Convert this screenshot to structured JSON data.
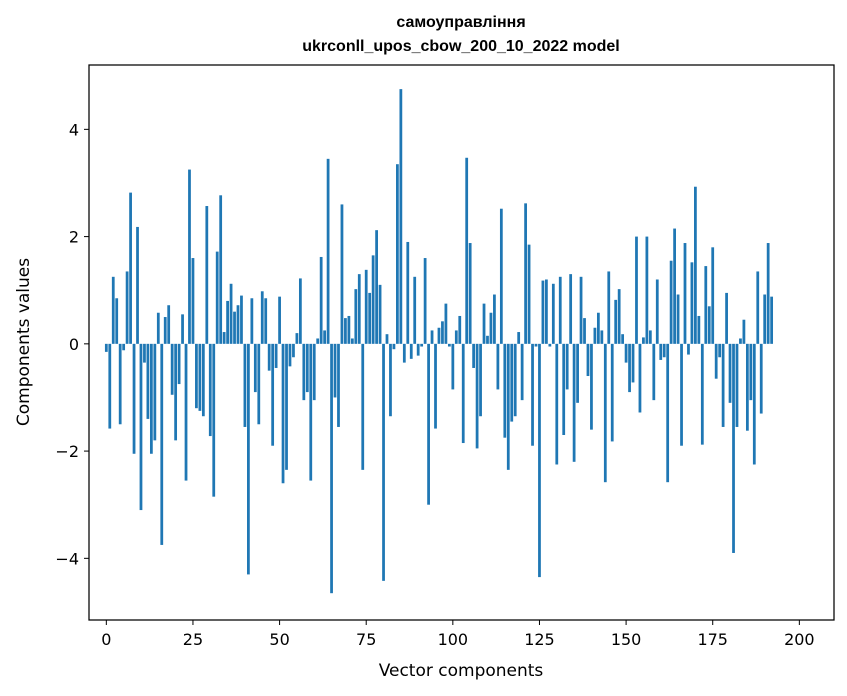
{
  "chart_data": {
    "type": "bar",
    "title": "самоуправління",
    "subtitle": "ukrconll_upos_cbow_200_10_2022 model",
    "xlabel": "Vector components",
    "ylabel": "Components values",
    "xlim": [
      -5,
      210
    ],
    "ylim": [
      -5.15,
      5.2
    ],
    "xticks": [
      0,
      25,
      50,
      75,
      100,
      125,
      150,
      175,
      200
    ],
    "xtick_labels": [
      "0",
      "25",
      "50",
      "75",
      "100",
      "125",
      "150",
      "175",
      "200"
    ],
    "yticks": [
      -4,
      -2,
      0,
      2,
      4
    ],
    "ytick_labels": [
      "−4",
      "−2",
      "0",
      "2",
      "4"
    ],
    "grid": false,
    "bar_color": "#1f77b4",
    "values": [
      -0.15,
      -1.58,
      1.25,
      0.85,
      -1.5,
      -0.12,
      1.35,
      2.82,
      -2.05,
      2.18,
      -3.1,
      -0.35,
      -1.4,
      -2.05,
      -1.8,
      0.58,
      -3.75,
      0.5,
      0.72,
      -0.95,
      -1.8,
      -0.75,
      0.55,
      -2.55,
      3.25,
      1.6,
      -1.2,
      -1.25,
      -1.35,
      2.57,
      -1.72,
      -2.85,
      1.72,
      2.77,
      0.22,
      0.8,
      1.12,
      0.6,
      0.72,
      0.9,
      -1.55,
      -4.3,
      0.85,
      -0.9,
      -1.5,
      0.98,
      0.85,
      -0.5,
      -1.9,
      -0.45,
      0.88,
      -2.6,
      -2.35,
      -0.42,
      -0.25,
      0.2,
      1.22,
      -1.05,
      -0.9,
      -2.55,
      -1.05,
      0.1,
      1.62,
      0.25,
      3.45,
      -4.65,
      -1.0,
      -1.55,
      2.6,
      0.48,
      0.52,
      0.1,
      1.02,
      1.3,
      -2.35,
      1.38,
      0.95,
      1.65,
      2.12,
      1.1,
      -4.42,
      0.18,
      -1.35,
      -0.1,
      3.35,
      4.75,
      -0.35,
      1.9,
      -0.28,
      1.25,
      -0.22,
      -0.05,
      1.6,
      -3.0,
      0.25,
      -1.58,
      0.3,
      0.42,
      0.75,
      -0.05,
      -0.85,
      0.25,
      0.52,
      -1.85,
      3.47,
      1.88,
      -0.45,
      -1.95,
      -1.35,
      0.75,
      0.15,
      0.58,
      0.92,
      -0.85,
      2.52,
      -1.75,
      -2.35,
      -1.45,
      -1.35,
      0.22,
      -1.05,
      2.62,
      1.85,
      -1.9,
      -0.05,
      -4.35,
      1.18,
      1.2,
      -0.05,
      1.12,
      -2.25,
      1.25,
      -1.7,
      -0.85,
      1.3,
      -2.2,
      -1.1,
      1.25,
      0.48,
      -0.6,
      -1.6,
      0.3,
      0.58,
      0.25,
      -2.58,
      1.35,
      -1.82,
      0.82,
      1.02,
      0.18,
      -0.35,
      -0.9,
      -0.72,
      2.0,
      -1.28,
      0.12,
      2.0,
      0.25,
      -1.05,
      1.2,
      -0.3,
      -0.25,
      -2.58,
      1.55,
      2.15,
      0.92,
      -1.9,
      1.88,
      -0.2,
      1.52,
      2.93,
      0.52,
      -1.88,
      1.45,
      0.7,
      1.8,
      -0.65,
      -0.25,
      -1.55,
      0.95,
      -1.1,
      -3.9,
      -1.55,
      0.1,
      0.45,
      -1.62,
      -1.05,
      -2.25,
      1.35,
      -1.3,
      0.92,
      1.88,
      0.88
    ]
  }
}
